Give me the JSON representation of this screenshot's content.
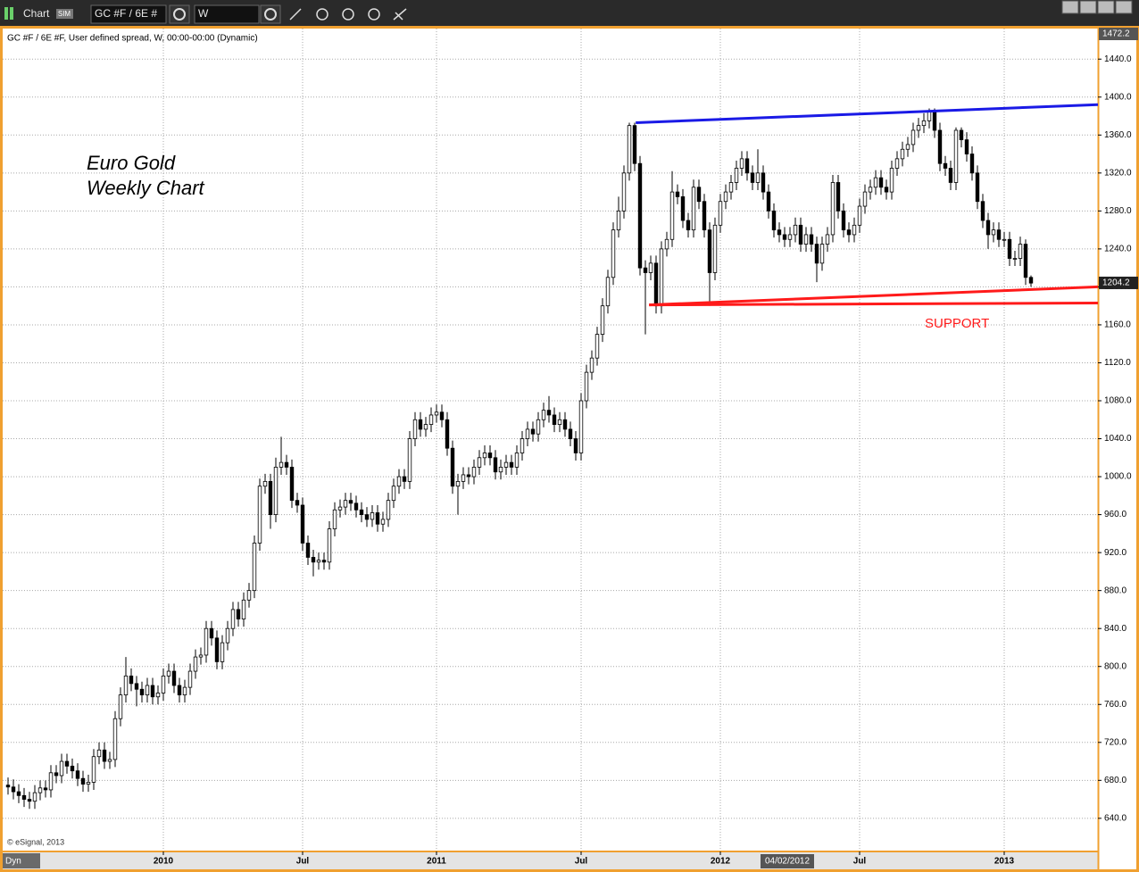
{
  "toolbar": {
    "window_title": "Chart",
    "mode_badge": "SIM",
    "symbol_box": "GC #F / 6E #",
    "interval_box": "W"
  },
  "chart_data": {
    "type": "candlestick",
    "header": "GC #F / 6E #F, User defined spread, W, 00:00-00:00 (Dynamic)",
    "title_lines": [
      "Euro Gold",
      "Weekly Chart"
    ],
    "annotation": "SUPPORT",
    "copyright": "© eSignal, 2013",
    "corner_label": "Dyn",
    "cursor_date": "04/02/2012",
    "top_marker": 1472.2,
    "last_price": 1204.2,
    "up_color": "#ffffff",
    "down_color": "#000000",
    "wick_color": "#000000",
    "xlim": [
      -1,
      203.5
    ],
    "xticks": [
      {
        "value": 29,
        "label": "2010"
      },
      {
        "value": 55,
        "label": "Jul"
      },
      {
        "value": 80,
        "label": "2011"
      },
      {
        "value": 107,
        "label": "Jul"
      },
      {
        "value": 133,
        "label": "2012"
      },
      {
        "value": 159,
        "label": "Jul"
      },
      {
        "value": 186,
        "label": "2013"
      }
    ],
    "ylim": [
      606,
      1472.2
    ],
    "yticks": [
      {
        "value": 640,
        "label": "640.0"
      },
      {
        "value": 680,
        "label": "680.0"
      },
      {
        "value": 720,
        "label": "720.0"
      },
      {
        "value": 760,
        "label": "760.0"
      },
      {
        "value": 800,
        "label": "800.0"
      },
      {
        "value": 840,
        "label": "840.0"
      },
      {
        "value": 880,
        "label": "880.0"
      },
      {
        "value": 920,
        "label": "920.0"
      },
      {
        "value": 960,
        "label": "960.0"
      },
      {
        "value": 1000,
        "label": "1000.0"
      },
      {
        "value": 1040,
        "label": "1040.0"
      },
      {
        "value": 1080,
        "label": "1080.0"
      },
      {
        "value": 1120,
        "label": "1120.0"
      },
      {
        "value": 1160,
        "label": "1160.0"
      },
      {
        "value": 1200,
        "label": "1200.0"
      },
      {
        "value": 1240,
        "label": "1240.0"
      },
      {
        "value": 1280,
        "label": "1280.0"
      },
      {
        "value": 1320,
        "label": "1320.0"
      },
      {
        "value": 1360,
        "label": "1360.0"
      },
      {
        "value": 1400,
        "label": "1400.0"
      },
      {
        "value": 1440,
        "label": "1440.0"
      }
    ],
    "grid": true,
    "open": [
      675,
      673,
      668,
      664,
      660,
      658,
      667,
      672,
      670,
      688,
      685,
      700,
      695,
      690,
      682,
      676,
      678,
      705,
      712,
      700,
      702,
      745,
      770,
      790,
      782,
      776,
      770,
      780,
      768,
      772,
      790,
      795,
      780,
      770,
      778,
      795,
      810,
      812,
      840,
      830,
      805,
      825,
      840,
      860,
      850,
      870,
      880,
      930,
      990,
      995,
      960,
      1010,
      1015,
      1010,
      975,
      970,
      930,
      915,
      910,
      912,
      910,
      945,
      965,
      968,
      975,
      972,
      965,
      960,
      955,
      962,
      950,
      955,
      975,
      990,
      1000,
      995,
      1040,
      1060,
      1050,
      1055,
      1065,
      1068,
      1060,
      1030,
      990,
      995,
      1002,
      1000,
      1010,
      1020,
      1025,
      1020,
      1005,
      1010,
      1015,
      1010,
      1025,
      1040,
      1050,
      1045,
      1060,
      1070,
      1065,
      1055,
      1060,
      1050,
      1040,
      1025,
      1080,
      1110,
      1125,
      1150,
      1180,
      1210,
      1260,
      1280,
      1320,
      1370,
      1330,
      1220,
      1215,
      1225,
      1180,
      1240,
      1250,
      1300,
      1295,
      1270,
      1260,
      1305,
      1290,
      1260,
      1215,
      1265,
      1290,
      1300,
      1310,
      1325,
      1335,
      1320,
      1310,
      1320,
      1300,
      1280,
      1260,
      1255,
      1250,
      1255,
      1265,
      1245,
      1255,
      1245,
      1225,
      1245,
      1255,
      1310,
      1280,
      1260,
      1255,
      1265,
      1285,
      1300,
      1305,
      1315,
      1305,
      1300,
      1325,
      1335,
      1345,
      1350,
      1365,
      1370,
      1375,
      1385,
      1365,
      1330,
      1325,
      1310,
      1365,
      1355,
      1340,
      1320,
      1290,
      1270,
      1255,
      1260,
      1250,
      1250,
      1230,
      1230,
      1245,
      1210
    ],
    "high": [
      683,
      681,
      676,
      672,
      668,
      675,
      680,
      680,
      696,
      696,
      708,
      708,
      703,
      698,
      690,
      686,
      713,
      720,
      720,
      710,
      753,
      778,
      810,
      798,
      790,
      784,
      788,
      788,
      780,
      798,
      803,
      803,
      788,
      786,
      803,
      818,
      820,
      848,
      848,
      838,
      833,
      848,
      868,
      868,
      878,
      888,
      938,
      998,
      1003,
      1003,
      1020,
      1042,
      1023,
      1018,
      983,
      978,
      938,
      923,
      920,
      920,
      953,
      973,
      976,
      983,
      983,
      980,
      973,
      968,
      970,
      970,
      963,
      983,
      998,
      1008,
      1008,
      1048,
      1068,
      1068,
      1063,
      1073,
      1076,
      1076,
      1068,
      1038,
      1003,
      1010,
      1010,
      1018,
      1028,
      1033,
      1033,
      1028,
      1018,
      1023,
      1023,
      1033,
      1048,
      1058,
      1058,
      1068,
      1078,
      1085,
      1073,
      1068,
      1068,
      1058,
      1048,
      1088,
      1118,
      1133,
      1158,
      1188,
      1218,
      1268,
      1295,
      1328,
      1373,
      1373,
      1338,
      1228,
      1233,
      1233,
      1248,
      1258,
      1322,
      1308,
      1303,
      1278,
      1313,
      1313,
      1298,
      1268,
      1273,
      1298,
      1308,
      1318,
      1333,
      1343,
      1343,
      1328,
      1345,
      1328,
      1308,
      1288,
      1268,
      1263,
      1263,
      1273,
      1273,
      1263,
      1263,
      1253,
      1253,
      1263,
      1318,
      1318,
      1288,
      1268,
      1273,
      1293,
      1308,
      1313,
      1323,
      1323,
      1313,
      1333,
      1343,
      1353,
      1358,
      1373,
      1378,
      1383,
      1388,
      1388,
      1373,
      1338,
      1333,
      1368,
      1368,
      1363,
      1348,
      1328,
      1298,
      1278,
      1268,
      1268,
      1258,
      1258,
      1238,
      1253,
      1250,
      1212
    ],
    "low": [
      665,
      660,
      656,
      652,
      650,
      650,
      659,
      662,
      662,
      677,
      677,
      687,
      682,
      674,
      668,
      668,
      670,
      697,
      692,
      692,
      694,
      737,
      762,
      774,
      758,
      762,
      762,
      760,
      760,
      764,
      782,
      772,
      762,
      762,
      770,
      787,
      802,
      804,
      822,
      797,
      797,
      817,
      832,
      842,
      842,
      862,
      872,
      922,
      982,
      945,
      952,
      1002,
      1002,
      967,
      962,
      922,
      907,
      895,
      902,
      902,
      902,
      937,
      957,
      960,
      964,
      957,
      952,
      947,
      947,
      942,
      942,
      947,
      967,
      982,
      987,
      987,
      1032,
      1042,
      1042,
      1047,
      1057,
      1052,
      1022,
      982,
      960,
      987,
      992,
      992,
      1002,
      1012,
      1012,
      997,
      997,
      1002,
      1002,
      1002,
      1017,
      1032,
      1037,
      1037,
      1052,
      1057,
      1047,
      1047,
      1042,
      1032,
      1017,
      1017,
      1072,
      1102,
      1117,
      1142,
      1172,
      1202,
      1252,
      1272,
      1312,
      1322,
      1212,
      1150,
      1207,
      1172,
      1172,
      1232,
      1242,
      1287,
      1262,
      1252,
      1252,
      1282,
      1252,
      1180,
      1207,
      1257,
      1282,
      1292,
      1302,
      1317,
      1312,
      1302,
      1302,
      1292,
      1272,
      1252,
      1247,
      1242,
      1242,
      1247,
      1237,
      1237,
      1237,
      1205,
      1217,
      1237,
      1247,
      1272,
      1252,
      1247,
      1247,
      1257,
      1277,
      1292,
      1297,
      1297,
      1292,
      1292,
      1317,
      1327,
      1337,
      1342,
      1357,
      1362,
      1367,
      1357,
      1322,
      1317,
      1302,
      1302,
      1347,
      1332,
      1312,
      1282,
      1262,
      1240,
      1247,
      1242,
      1242,
      1222,
      1222,
      1222,
      1202,
      1200
    ],
    "close": [
      673,
      668,
      664,
      660,
      658,
      667,
      672,
      670,
      688,
      685,
      700,
      695,
      690,
      682,
      676,
      678,
      705,
      712,
      700,
      702,
      745,
      770,
      790,
      782,
      776,
      770,
      780,
      768,
      772,
      790,
      795,
      780,
      770,
      778,
      795,
      810,
      812,
      840,
      830,
      805,
      825,
      840,
      860,
      850,
      870,
      880,
      930,
      990,
      995,
      960,
      1010,
      1015,
      1010,
      975,
      970,
      930,
      915,
      910,
      912,
      910,
      945,
      965,
      968,
      975,
      972,
      965,
      960,
      955,
      962,
      950,
      955,
      975,
      990,
      1000,
      995,
      1040,
      1060,
      1050,
      1055,
      1065,
      1068,
      1060,
      1030,
      990,
      995,
      1002,
      1000,
      1010,
      1020,
      1025,
      1020,
      1005,
      1010,
      1015,
      1010,
      1025,
      1040,
      1050,
      1045,
      1060,
      1070,
      1065,
      1055,
      1060,
      1050,
      1040,
      1025,
      1080,
      1110,
      1125,
      1150,
      1180,
      1210,
      1260,
      1280,
      1320,
      1370,
      1330,
      1220,
      1215,
      1225,
      1180,
      1240,
      1250,
      1300,
      1295,
      1270,
      1260,
      1305,
      1290,
      1260,
      1215,
      1265,
      1290,
      1300,
      1310,
      1325,
      1335,
      1320,
      1310,
      1320,
      1300,
      1280,
      1260,
      1255,
      1250,
      1255,
      1265,
      1245,
      1255,
      1245,
      1225,
      1245,
      1255,
      1310,
      1280,
      1260,
      1255,
      1265,
      1285,
      1300,
      1305,
      1315,
      1305,
      1300,
      1325,
      1335,
      1345,
      1350,
      1365,
      1370,
      1375,
      1385,
      1365,
      1330,
      1325,
      1310,
      1365,
      1355,
      1340,
      1320,
      1290,
      1270,
      1255,
      1260,
      1250,
      1250,
      1230,
      1230,
      1245,
      1210,
      1204
    ],
    "trendlines": [
      {
        "color": "#1a1ae6",
        "x": [
          117.2,
          203.5
        ],
        "y": [
          1373,
          1392
        ]
      },
      {
        "color": "#ff1a1a",
        "x": [
          119.7,
          203.5
        ],
        "y": [
          1181,
          1200
        ]
      },
      {
        "color": "#ff1a1a",
        "x": [
          119.7,
          203.5
        ],
        "y": [
          1181,
          1183
        ]
      }
    ]
  }
}
